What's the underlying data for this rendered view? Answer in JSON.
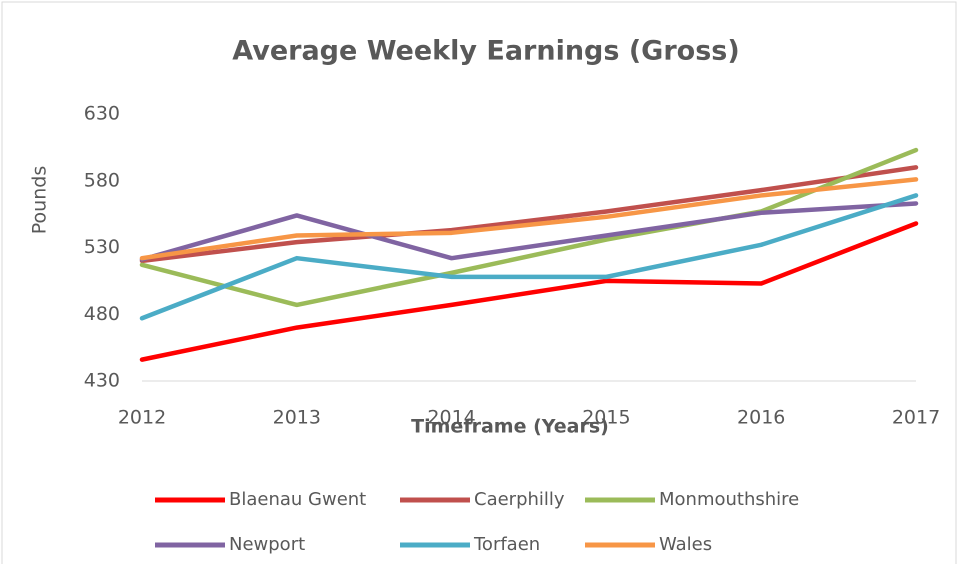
{
  "chart_data": {
    "type": "line",
    "title": "Average Weekly Earnings (Gross)",
    "x_label": "Timeframe (Years)",
    "y_label": "Pounds",
    "x": [
      2012,
      2013,
      2014,
      2015,
      2016,
      2017
    ],
    "xlim": [
      2012,
      2017
    ],
    "xticks": [
      2012,
      2013,
      2014,
      2015,
      2016,
      2017
    ],
    "ylim": [
      430,
      630
    ],
    "yticks": [
      430,
      480,
      530,
      580,
      630
    ],
    "grid": false,
    "legend": "bottom",
    "series": [
      {
        "name": "Blaenau Gwent",
        "color": "#ff0000",
        "values": [
          446,
          470,
          487,
          505,
          503,
          548
        ]
      },
      {
        "name": "Caerphilly",
        "color": "#c0504d",
        "values": [
          520,
          534,
          543,
          557,
          573,
          590
        ]
      },
      {
        "name": "Monmouthshire",
        "color": "#9bbb59",
        "values": [
          517,
          487,
          511,
          536,
          557,
          603
        ]
      },
      {
        "name": "Newport",
        "color": "#8064a2",
        "values": [
          521,
          554,
          522,
          539,
          556,
          563
        ]
      },
      {
        "name": "Torfaen",
        "color": "#4bacc6",
        "values": [
          477,
          522,
          508,
          508,
          532,
          569
        ]
      },
      {
        "name": "Wales",
        "color": "#f79646",
        "values": [
          522,
          539,
          541,
          553,
          569,
          581
        ]
      }
    ]
  }
}
